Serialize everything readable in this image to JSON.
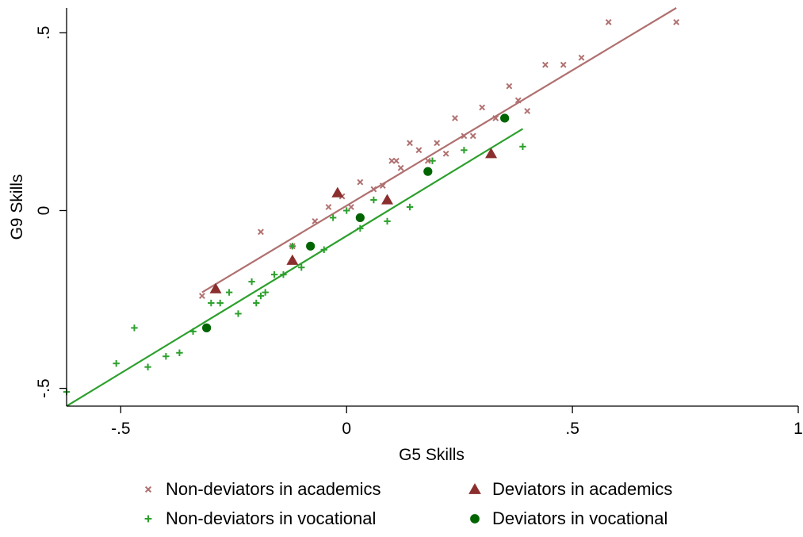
{
  "chart_data": {
    "type": "scatter",
    "xlabel": "G5 Skills",
    "ylabel": "G9 Skills",
    "xlim": [
      -0.62,
      1.0
    ],
    "ylim": [
      -0.55,
      0.57
    ],
    "x_ticks": [
      {
        "value": -0.5,
        "label": "-.5"
      },
      {
        "value": 0,
        "label": "0"
      },
      {
        "value": 0.5,
        "label": ".5"
      },
      {
        "value": 1,
        "label": "1"
      }
    ],
    "y_ticks": [
      {
        "value": -0.5,
        "label": "-.5"
      },
      {
        "value": 0,
        "label": "0"
      },
      {
        "value": 0.5,
        "label": ".5"
      }
    ],
    "grid": false,
    "legend_position": "bottom",
    "colors": {
      "non_dev_academic": "#b07070",
      "dev_academic": "#8b2e2e",
      "non_dev_vocational": "#2ca02c",
      "dev_vocational": "#006400",
      "fit_academic": "#b07070",
      "fit_vocational": "#2ca02c"
    },
    "series": [
      {
        "name": "Non-deviators in academics",
        "marker": "x",
        "color": "#b07070",
        "points": [
          [
            -0.32,
            -0.24
          ],
          [
            -0.19,
            -0.06
          ],
          [
            -0.12,
            -0.1
          ],
          [
            -0.07,
            -0.03
          ],
          [
            -0.04,
            0.01
          ],
          [
            -0.01,
            0.04
          ],
          [
            0.01,
            0.01
          ],
          [
            0.03,
            0.08
          ],
          [
            0.06,
            0.06
          ],
          [
            0.08,
            0.07
          ],
          [
            0.1,
            0.14
          ],
          [
            0.11,
            0.14
          ],
          [
            0.12,
            0.12
          ],
          [
            0.14,
            0.19
          ],
          [
            0.16,
            0.17
          ],
          [
            0.18,
            0.14
          ],
          [
            0.2,
            0.19
          ],
          [
            0.22,
            0.16
          ],
          [
            0.24,
            0.26
          ],
          [
            0.26,
            0.21
          ],
          [
            0.28,
            0.21
          ],
          [
            0.3,
            0.29
          ],
          [
            0.33,
            0.26
          ],
          [
            0.36,
            0.35
          ],
          [
            0.38,
            0.31
          ],
          [
            0.4,
            0.28
          ],
          [
            0.44,
            0.41
          ],
          [
            0.48,
            0.41
          ],
          [
            0.52,
            0.43
          ],
          [
            0.58,
            0.53
          ],
          [
            0.73,
            0.53
          ]
        ]
      },
      {
        "name": "Deviators in academics",
        "marker": "triangle",
        "color": "#8b2e2e",
        "points": [
          [
            -0.29,
            -0.22
          ],
          [
            -0.12,
            -0.14
          ],
          [
            -0.02,
            0.05
          ],
          [
            0.09,
            0.03
          ],
          [
            0.32,
            0.16
          ]
        ]
      },
      {
        "name": "Non-deviators in vocational",
        "marker": "plus",
        "color": "#2ca02c",
        "points": [
          [
            -0.62,
            -0.51
          ],
          [
            -0.51,
            -0.43
          ],
          [
            -0.47,
            -0.33
          ],
          [
            -0.44,
            -0.44
          ],
          [
            -0.4,
            -0.41
          ],
          [
            -0.37,
            -0.4
          ],
          [
            -0.34,
            -0.34
          ],
          [
            -0.3,
            -0.26
          ],
          [
            -0.28,
            -0.26
          ],
          [
            -0.26,
            -0.23
          ],
          [
            -0.24,
            -0.29
          ],
          [
            -0.21,
            -0.2
          ],
          [
            -0.2,
            -0.26
          ],
          [
            -0.19,
            -0.24
          ],
          [
            -0.18,
            -0.23
          ],
          [
            -0.16,
            -0.18
          ],
          [
            -0.14,
            -0.18
          ],
          [
            -0.12,
            -0.1
          ],
          [
            -0.1,
            -0.16
          ],
          [
            -0.05,
            -0.11
          ],
          [
            -0.03,
            -0.02
          ],
          [
            0.0,
            0.0
          ],
          [
            0.03,
            -0.05
          ],
          [
            0.06,
            0.03
          ],
          [
            0.09,
            -0.03
          ],
          [
            0.14,
            0.01
          ],
          [
            0.19,
            0.14
          ],
          [
            0.26,
            0.17
          ],
          [
            0.39,
            0.18
          ]
        ]
      },
      {
        "name": "Deviators in vocational",
        "marker": "circle",
        "color": "#006400",
        "points": [
          [
            -0.31,
            -0.33
          ],
          [
            -0.08,
            -0.1
          ],
          [
            0.03,
            -0.02
          ],
          [
            0.18,
            0.11
          ],
          [
            0.35,
            0.26
          ]
        ]
      }
    ],
    "fit_lines": [
      {
        "group": "academics",
        "color": "#b07070",
        "x": [
          -0.32,
          0.73
        ],
        "y": [
          -0.23,
          0.57
        ]
      },
      {
        "group": "vocational",
        "color": "#2ca02c",
        "x": [
          -0.62,
          0.39
        ],
        "y": [
          -0.55,
          0.23
        ]
      }
    ]
  }
}
